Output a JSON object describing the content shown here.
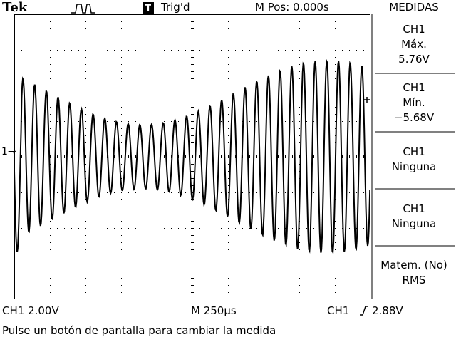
{
  "header": {
    "brand": "Tek",
    "trigger_badge": "T",
    "trigger_status": "Trig'd",
    "position": "M Pos: 0.000s",
    "menu_title": "MEDIDAS"
  },
  "channel_marker": "1",
  "measurements": [
    {
      "source": "CH1",
      "type": "Máx.",
      "value": "5.76V"
    },
    {
      "source": "CH1",
      "type": "Mín.",
      "value": "−5.68V"
    },
    {
      "source": "CH1",
      "type": "Ninguna",
      "value": ""
    },
    {
      "source": "CH1",
      "type": "Ninguna",
      "value": ""
    },
    {
      "source": "Matem. (No)",
      "type": "RMS",
      "value": ""
    }
  ],
  "status_bar": {
    "ch1_scale": "CH1  2.00V",
    "timebase": "M 250µs",
    "trigger_source": "CH1",
    "trigger_level": "2.88V"
  },
  "help_text": "Pulse un botón de pantalla para cambiar la medida",
  "colors": {
    "trace": "#000000",
    "background": "#ffffff"
  },
  "icons": [
    "pulse-shape-icon",
    "trigger-marker-icon",
    "rising-edge-icon",
    "channel-1-marker-icon"
  ]
}
